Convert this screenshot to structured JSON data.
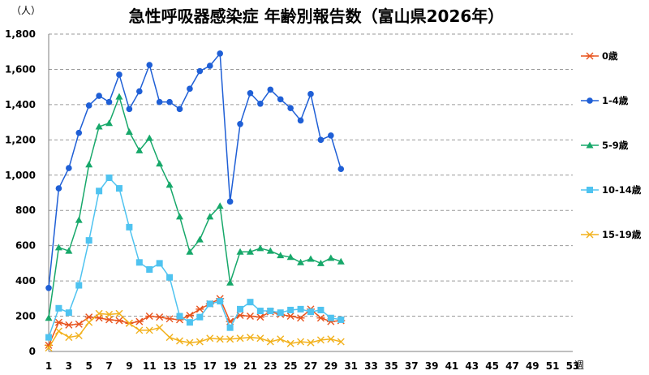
{
  "chart_data": {
    "type": "line",
    "title": "急性呼吸器感染症 年齢別報告数（富山県2026年）",
    "y_unit": "（人）",
    "x_unit": "週",
    "ylim": [
      0,
      1800
    ],
    "y_ticks": [
      "0",
      "200",
      "400",
      "600",
      "800",
      "1,000",
      "1,200",
      "1,400",
      "1,600",
      "1,800"
    ],
    "y_tick_values": [
      0,
      200,
      400,
      600,
      800,
      1000,
      1200,
      1400,
      1600,
      1800
    ],
    "xlim": [
      1,
      53
    ],
    "x_ticks": [
      1,
      3,
      5,
      7,
      9,
      11,
      13,
      15,
      17,
      19,
      21,
      23,
      25,
      27,
      29,
      31,
      33,
      35,
      37,
      39,
      41,
      43,
      45,
      47,
      49,
      51,
      53
    ],
    "grid": "horizontal dashed",
    "legend_position": "right",
    "series": [
      {
        "name": "0歳",
        "color": "#E8541E",
        "marker": "asterisk",
        "values": [
          35,
          165,
          150,
          155,
          195,
          190,
          180,
          175,
          160,
          170,
          200,
          195,
          185,
          180,
          205,
          240,
          270,
          300,
          170,
          205,
          200,
          195,
          225,
          210,
          200,
          190,
          240,
          190,
          170,
          175
        ]
      },
      {
        "name": "1-4歳",
        "color": "#1F5FD6",
        "marker": "circle",
        "values": [
          360,
          925,
          1040,
          1240,
          1395,
          1450,
          1415,
          1570,
          1375,
          1475,
          1625,
          1415,
          1415,
          1375,
          1490,
          1590,
          1620,
          1690,
          850,
          1290,
          1465,
          1405,
          1485,
          1430,
          1380,
          1310,
          1460,
          1200,
          1225,
          1035
        ]
      },
      {
        "name": "5-9歳",
        "color": "#17A86A",
        "marker": "triangle",
        "values": [
          190,
          590,
          570,
          745,
          1060,
          1275,
          1295,
          1445,
          1245,
          1140,
          1210,
          1065,
          945,
          765,
          565,
          635,
          765,
          825,
          390,
          565,
          565,
          585,
          570,
          545,
          535,
          505,
          525,
          500,
          530,
          510
        ]
      },
      {
        "name": "10-14歳",
        "color": "#4FC3F0",
        "marker": "square",
        "values": [
          80,
          245,
          220,
          375,
          630,
          910,
          985,
          925,
          705,
          505,
          465,
          500,
          420,
          200,
          165,
          195,
          270,
          285,
          135,
          240,
          280,
          230,
          230,
          220,
          235,
          240,
          225,
          235,
          190,
          180
        ]
      },
      {
        "name": "15-19歳",
        "color": "#F2B11C",
        "marker": "x",
        "values": [
          20,
          115,
          80,
          90,
          165,
          215,
          210,
          215,
          160,
          120,
          120,
          135,
          80,
          60,
          50,
          55,
          75,
          70,
          70,
          75,
          80,
          75,
          55,
          70,
          45,
          55,
          50,
          65,
          70,
          55
        ]
      }
    ]
  }
}
